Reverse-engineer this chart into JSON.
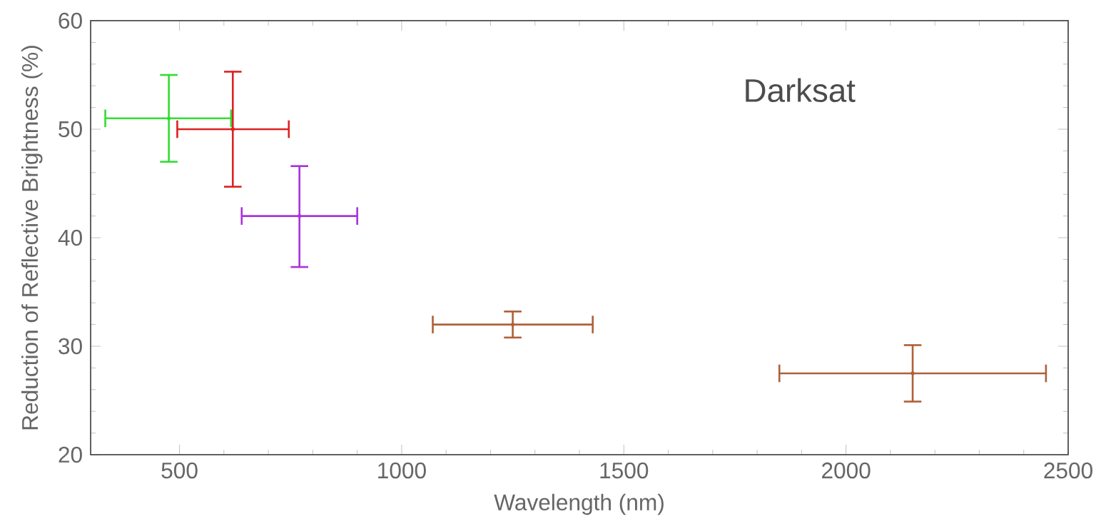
{
  "chart_data": {
    "type": "scatter",
    "xlabel": "Wavelength (nm)",
    "ylabel": "Reduction of Reflective Brightness (%)",
    "annotations": [
      "Darksat"
    ],
    "x": [
      476,
      620,
      770,
      1250,
      2150
    ],
    "values": [
      51,
      50,
      42,
      32,
      27.5
    ],
    "xerrors": [
      [
        333,
        616
      ],
      [
        495,
        746
      ],
      [
        640,
        900
      ],
      [
        1070,
        1430
      ],
      [
        1850,
        2450
      ]
    ],
    "errors": [
      [
        47,
        55
      ],
      [
        44.7,
        55.3
      ],
      [
        37.3,
        46.6
      ],
      [
        30.8,
        33.2
      ],
      [
        24.9,
        30.1
      ]
    ],
    "colors": [
      "#33dd33",
      "#dd2222",
      "#aa33dd",
      "#b0603a",
      "#b0603a"
    ],
    "marker": "none",
    "grid": false,
    "xlim": [
      300,
      2500
    ],
    "xticks": [
      500,
      1000,
      1500,
      2000,
      2500
    ],
    "ylim": [
      20,
      60
    ],
    "yticks": [
      20,
      30,
      40,
      50,
      60
    ]
  }
}
